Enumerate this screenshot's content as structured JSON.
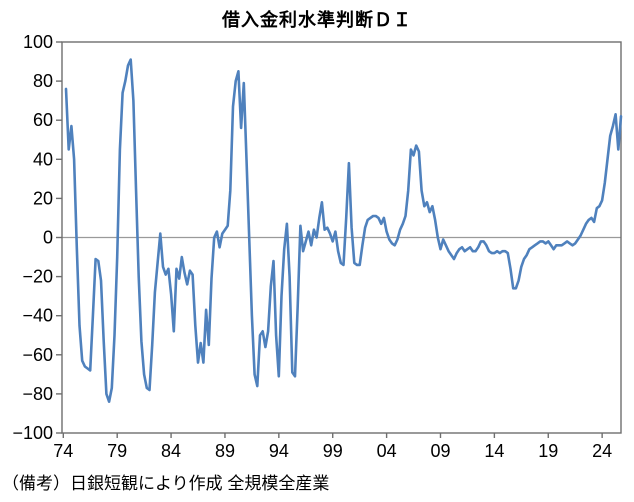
{
  "title": "借入金利水準判断ＤＩ",
  "note": "（備考）日銀短観により作成 全規模全産業",
  "chart_data": {
    "type": "line",
    "title": "借入金利水準判断ＤＩ",
    "series_name": "借入金利水準判断DI（全規模全産業）",
    "source_note": "（備考）日銀短観により作成 全規模全産業",
    "frequency": "quarterly",
    "x_start": 1974.25,
    "x_step": 0.25,
    "x_end": 2025.75,
    "ylim": [
      -100,
      100
    ],
    "xlabel": "",
    "ylabel": "",
    "legend": "none",
    "grid": "zero-line-only",
    "line_color": "#4F81BD",
    "frame_color": "#6e6e6e",
    "zero_line_color": "#9a9a9a",
    "y_axis": {
      "values": [
        100,
        80,
        60,
        40,
        20,
        0,
        -20,
        -40,
        -60,
        -80,
        -100
      ],
      "labels": [
        "100",
        "80",
        "60",
        "40",
        "20",
        "0",
        "−20",
        "−40",
        "−60",
        "−80",
        "−100"
      ]
    },
    "x_axis": {
      "years": [
        1974,
        1979,
        1984,
        1989,
        1994,
        1999,
        2004,
        2009,
        2014,
        2019,
        2024
      ],
      "labels": [
        "74",
        "79",
        "84",
        "89",
        "94",
        "99",
        "04",
        "09",
        "14",
        "19",
        "24"
      ]
    },
    "values": [
      76,
      45,
      57,
      40,
      -5,
      -45,
      -63,
      -66,
      -67,
      -68,
      -40,
      -11,
      -12,
      -22,
      -53,
      -80,
      -84,
      -77,
      -50,
      -10,
      45,
      74,
      80,
      88,
      91,
      70,
      25,
      -20,
      -53,
      -70,
      -77,
      -78,
      -55,
      -28,
      -13,
      2,
      -15,
      -19,
      -16,
      -29,
      -48,
      -16,
      -21,
      -10,
      -18,
      -24,
      -17,
      -19,
      -45,
      -64,
      -54,
      -64,
      -37,
      -55,
      -21,
      0,
      3,
      -5,
      2,
      4,
      6,
      24,
      67,
      80,
      85,
      56,
      79,
      40,
      0,
      -40,
      -70,
      -76,
      -50,
      -48,
      -56,
      -48,
      -25,
      -12,
      -50,
      -71,
      -30,
      -6,
      7,
      -20,
      -69,
      -71,
      -35,
      6,
      -7,
      -2,
      3,
      -4,
      4,
      0,
      10,
      18,
      4,
      5,
      2,
      -2,
      3,
      -7,
      -13,
      -14,
      10,
      38,
      5,
      -13,
      -14,
      -14,
      -4,
      5,
      9,
      10,
      11,
      11,
      10,
      7,
      10,
      3,
      -1,
      -3,
      -4,
      -1,
      4,
      7,
      11,
      24,
      45,
      42,
      47,
      44,
      24,
      16,
      18,
      13,
      16,
      9,
      0,
      -6,
      -1,
      -4,
      -7,
      -9,
      -11,
      -8,
      -6,
      -5,
      -7,
      -6,
      -5,
      -7,
      -7,
      -5,
      -2,
      -2,
      -4,
      -7,
      -8,
      -8,
      -7,
      -8,
      -7,
      -7,
      -8,
      -16,
      -26,
      -26,
      -22,
      -15,
      -11,
      -9,
      -6,
      -5,
      -4,
      -3,
      -2,
      -2,
      -3,
      -2,
      -4,
      -6,
      -4,
      -4,
      -4,
      -3,
      -2,
      -3,
      -4,
      -3,
      -1,
      1,
      4,
      7,
      9,
      10,
      8,
      15,
      16,
      19,
      28,
      40,
      52,
      57,
      63,
      45,
      62
    ]
  }
}
